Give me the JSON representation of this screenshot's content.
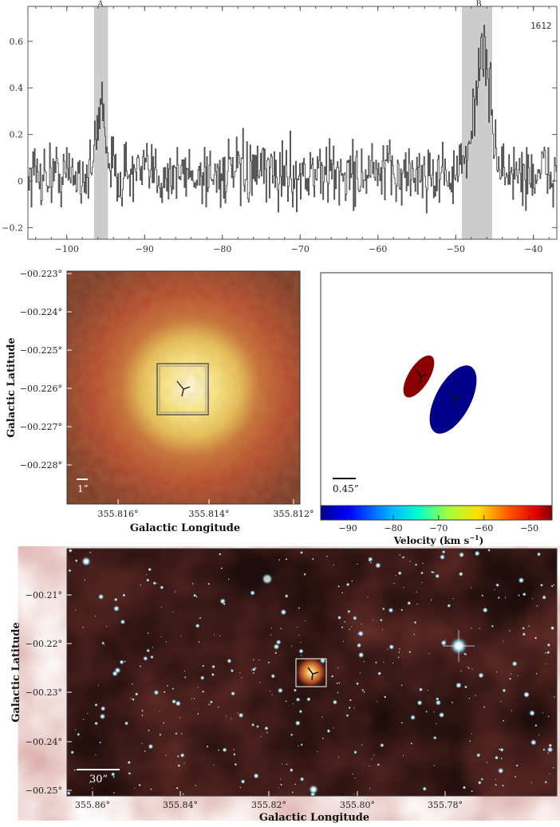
{
  "spectrum": {
    "tag": "1612",
    "band_labels": [
      "A",
      "B"
    ],
    "chart_data": {
      "type": "line",
      "title": "",
      "xlabel": "",
      "ylabel": "",
      "xlim": [
        -105,
        -37
      ],
      "ylim": [
        -0.25,
        0.75
      ],
      "xticks": [
        -100,
        -90,
        -80,
        -70,
        -60,
        -50,
        -40
      ],
      "xtick_labels": [
        "−100",
        "−90",
        "−80",
        "−70",
        "−60",
        "−50",
        "−40"
      ],
      "yticks": [
        -0.2,
        0,
        0.2,
        0.4,
        0.6
      ],
      "ytick_labels": [
        "−0.2",
        "0",
        "0.2",
        "0.4",
        "0.6"
      ],
      "shaded_bands": [
        [
          -96.5,
          -94.7
        ],
        [
          -49.2,
          -45.3
        ]
      ],
      "peaks": [
        {
          "x": -95.6,
          "y": 0.36
        },
        {
          "x": -46.6,
          "y": 0.7
        }
      ],
      "noise_level": 0.07
    }
  },
  "zoom_image": {
    "xlabel": "Galactic Longitude",
    "ylabel": "Galactic Latitude",
    "x_ticks": [
      "355.816°",
      "355.814°",
      "355.812°"
    ],
    "y_ticks": [
      "−00.223°",
      "−00.224°",
      "−00.225°",
      "−00.226°",
      "−00.227°",
      "−00.228°"
    ],
    "scale_label": "1”"
  },
  "velocity_map": {
    "scale_label": "0.45”",
    "colorbar_label": "Velocity (km s",
    "colorbar_unit_exp": "−1",
    "colorbar_ticks": [
      "−90",
      "−80",
      "−70",
      "−60",
      "−50"
    ],
    "colorbar_range": [
      -96,
      -45
    ],
    "spots": [
      {
        "velocity": -47,
        "color": "#8b0000"
      },
      {
        "velocity": -94,
        "color": "#00008b"
      }
    ]
  },
  "wide_image": {
    "xlabel": "Galactic Longitude",
    "ylabel": "Galactic Latitude",
    "x_ticks": [
      "355.86°",
      "355.84°",
      "355.82°",
      "355.80°",
      "355.78°"
    ],
    "y_ticks": [
      "−00.21°",
      "−00.22°",
      "−00.23°",
      "−00.24°",
      "−00.25°"
    ],
    "scale_label": "30”"
  }
}
